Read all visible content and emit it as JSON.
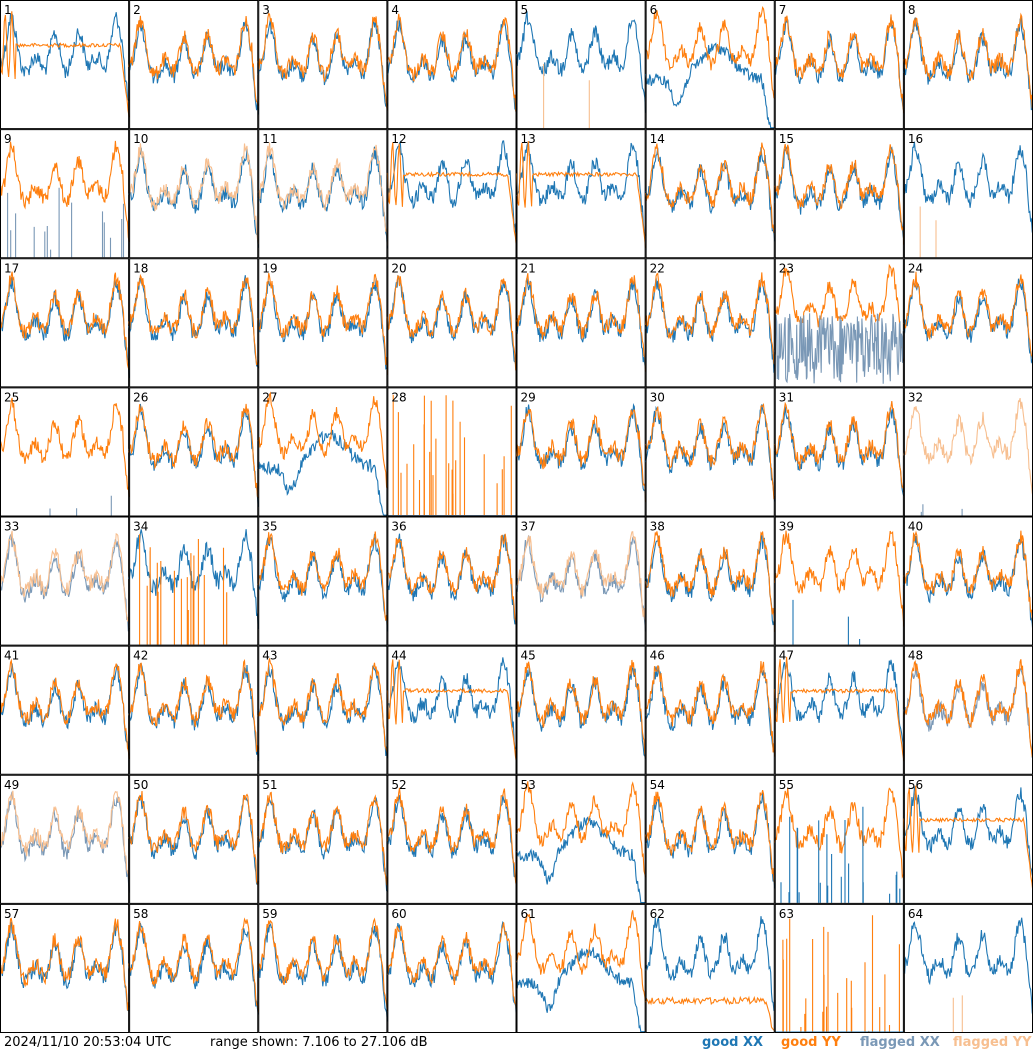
{
  "chart_data": {
    "type": "line",
    "layout": "8x8 grid of small multiples",
    "panels": [
      {
        "label": "1",
        "xx": "good",
        "yy": "good",
        "shape": "ripple-flat"
      },
      {
        "label": "2",
        "xx": "good",
        "yy": "good",
        "shape": "normal"
      },
      {
        "label": "3",
        "xx": "good",
        "yy": "good",
        "shape": "normal"
      },
      {
        "label": "4",
        "xx": "good",
        "yy": "good",
        "shape": "normal"
      },
      {
        "label": "5",
        "xx": "good",
        "yy": "flagged",
        "shape": "xx-only"
      },
      {
        "label": "6",
        "xx": "good",
        "yy": "good",
        "shape": "hump"
      },
      {
        "label": "7",
        "xx": "good",
        "yy": "good",
        "shape": "normal"
      },
      {
        "label": "8",
        "xx": "good",
        "yy": "good",
        "shape": "normal"
      },
      {
        "label": "9",
        "xx": "flagged",
        "yy": "good",
        "shape": "xx-spikes"
      },
      {
        "label": "10",
        "xx": "good",
        "yy": "flagged",
        "shape": "normal"
      },
      {
        "label": "11",
        "xx": "good",
        "yy": "flagged",
        "shape": "normal"
      },
      {
        "label": "12",
        "xx": "good",
        "yy": "good",
        "shape": "ripple-flat"
      },
      {
        "label": "13",
        "xx": "good",
        "yy": "good",
        "shape": "ripple-flat"
      },
      {
        "label": "14",
        "xx": "good",
        "yy": "good",
        "shape": "normal"
      },
      {
        "label": "15",
        "xx": "good",
        "yy": "good",
        "shape": "normal"
      },
      {
        "label": "16",
        "xx": "good",
        "yy": "flagged",
        "shape": "xx-only"
      },
      {
        "label": "17",
        "xx": "good",
        "yy": "good",
        "shape": "normal"
      },
      {
        "label": "18",
        "xx": "good",
        "yy": "good",
        "shape": "normal"
      },
      {
        "label": "19",
        "xx": "good",
        "yy": "good",
        "shape": "normal"
      },
      {
        "label": "20",
        "xx": "good",
        "yy": "good",
        "shape": "normal"
      },
      {
        "label": "21",
        "xx": "good",
        "yy": "good",
        "shape": "normal"
      },
      {
        "label": "22",
        "xx": "good",
        "yy": "good",
        "shape": "normal"
      },
      {
        "label": "23",
        "xx": "flagged",
        "yy": "good",
        "shape": "xx-noise"
      },
      {
        "label": "24",
        "xx": "good",
        "yy": "good",
        "shape": "normal"
      },
      {
        "label": "25",
        "xx": "flagged",
        "yy": "good",
        "shape": "yy-only"
      },
      {
        "label": "26",
        "xx": "good",
        "yy": "good",
        "shape": "normal"
      },
      {
        "label": "27",
        "xx": "good",
        "yy": "good",
        "shape": "hump"
      },
      {
        "label": "28",
        "xx": "flagged",
        "yy": "good",
        "shape": "dead"
      },
      {
        "label": "29",
        "xx": "good",
        "yy": "good",
        "shape": "normal"
      },
      {
        "label": "30",
        "xx": "good",
        "yy": "good",
        "shape": "normal"
      },
      {
        "label": "31",
        "xx": "good",
        "yy": "good",
        "shape": "normal"
      },
      {
        "label": "32",
        "xx": "flagged",
        "yy": "flagged",
        "shape": "yy-only"
      },
      {
        "label": "33",
        "xx": "flagged",
        "yy": "flagged",
        "shape": "normal"
      },
      {
        "label": "34",
        "xx": "good",
        "yy": "good",
        "shape": "yy-dead"
      },
      {
        "label": "35",
        "xx": "good",
        "yy": "good",
        "shape": "normal"
      },
      {
        "label": "36",
        "xx": "good",
        "yy": "good",
        "shape": "normal"
      },
      {
        "label": "37",
        "xx": "flagged",
        "yy": "flagged",
        "shape": "normal"
      },
      {
        "label": "38",
        "xx": "good",
        "yy": "good",
        "shape": "normal"
      },
      {
        "label": "39",
        "xx": "good",
        "yy": "good",
        "shape": "yy-only"
      },
      {
        "label": "40",
        "xx": "good",
        "yy": "good",
        "shape": "normal"
      },
      {
        "label": "41",
        "xx": "good",
        "yy": "good",
        "shape": "normal"
      },
      {
        "label": "42",
        "xx": "good",
        "yy": "good",
        "shape": "normal"
      },
      {
        "label": "43",
        "xx": "good",
        "yy": "good",
        "shape": "normal"
      },
      {
        "label": "44",
        "xx": "good",
        "yy": "good",
        "shape": "ripple-flat"
      },
      {
        "label": "45",
        "xx": "good",
        "yy": "good",
        "shape": "normal"
      },
      {
        "label": "46",
        "xx": "good",
        "yy": "good",
        "shape": "normal"
      },
      {
        "label": "47",
        "xx": "good",
        "yy": "good",
        "shape": "ripple-flat"
      },
      {
        "label": "48",
        "xx": "flagged",
        "yy": "good",
        "shape": "normal"
      },
      {
        "label": "49",
        "xx": "flagged",
        "yy": "flagged",
        "shape": "normal"
      },
      {
        "label": "50",
        "xx": "good",
        "yy": "good",
        "shape": "normal"
      },
      {
        "label": "51",
        "xx": "good",
        "yy": "good",
        "shape": "normal"
      },
      {
        "label": "52",
        "xx": "good",
        "yy": "good",
        "shape": "normal"
      },
      {
        "label": "53",
        "xx": "good",
        "yy": "good",
        "shape": "hump"
      },
      {
        "label": "54",
        "xx": "good",
        "yy": "good",
        "shape": "normal"
      },
      {
        "label": "55",
        "xx": "good",
        "yy": "good",
        "shape": "xx-dead"
      },
      {
        "label": "56",
        "xx": "good",
        "yy": "good",
        "shape": "ripple-flat"
      },
      {
        "label": "57",
        "xx": "good",
        "yy": "good",
        "shape": "normal"
      },
      {
        "label": "58",
        "xx": "good",
        "yy": "good",
        "shape": "normal"
      },
      {
        "label": "59",
        "xx": "good",
        "yy": "good",
        "shape": "normal"
      },
      {
        "label": "60",
        "xx": "good",
        "yy": "good",
        "shape": "normal"
      },
      {
        "label": "61",
        "xx": "good",
        "yy": "good",
        "shape": "hump"
      },
      {
        "label": "62",
        "xx": "good",
        "yy": "good",
        "shape": "yy-low"
      },
      {
        "label": "63",
        "xx": "good",
        "yy": "good",
        "shape": "dead"
      },
      {
        "label": "64",
        "xx": "good",
        "yy": "flagged",
        "shape": "xx-only"
      }
    ],
    "range_db": [
      7.106,
      27.106
    ],
    "colors": {
      "good_xx": "#1f77b4",
      "good_yy": "#ff7f0e",
      "flagged_xx": "#7a98b6",
      "flagged_yy": "#f7bf90"
    }
  },
  "footer": {
    "timestamp": "2024/11/10 20:53:04 UTC",
    "range": "range shown: 7.106 to 27.106 dB",
    "legend": {
      "good": "good",
      "flagged": "flagged",
      "xx": "XX",
      "yy": "YY"
    }
  }
}
